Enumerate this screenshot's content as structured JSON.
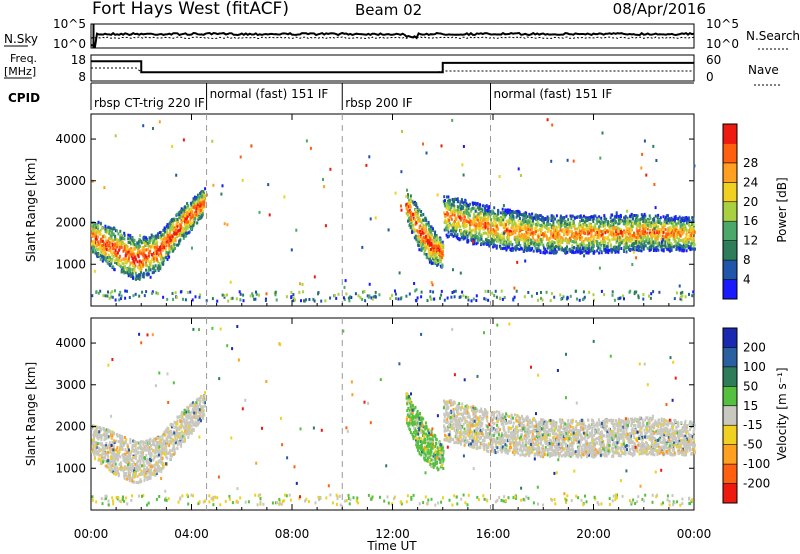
{
  "header": {
    "radar": "Fort Hays West (fitACF)",
    "beam": "Beam 02",
    "date": "08/Apr/2016"
  },
  "chart_data": {
    "type": "heatmap",
    "x_axis": {
      "label": "Time UT",
      "range": [
        "00:00",
        "24:00"
      ],
      "ticks": [
        "00:00",
        "04:00",
        "08:00",
        "12:00",
        "16:00",
        "20:00",
        "00:00"
      ],
      "tick_hours": [
        0,
        4,
        8,
        12,
        16,
        20,
        24
      ]
    },
    "top_panels": {
      "nsky": {
        "label": "N.Sky",
        "ticks": [
          "10^5",
          "10^0"
        ],
        "right_label": "N.Search",
        "right_ticks": [
          "10^5",
          "10^0"
        ]
      },
      "freq": {
        "label1": "Freq.",
        "label2": "[MHz]",
        "ticks": [
          "18",
          "8"
        ],
        "right_label": "Nave",
        "right_ticks": [
          "60",
          "0"
        ],
        "freq_steps": [
          {
            "start": 0,
            "end": 2,
            "mhz": 16.5
          },
          {
            "start": 2,
            "end": 14,
            "mhz": 11.5
          },
          {
            "start": 14,
            "end": 24,
            "mhz": 15.8
          }
        ]
      },
      "cpid": {
        "label": "CPID",
        "segments": [
          {
            "name": "rbsp CT-trig 220 IF",
            "start": 0,
            "end": 4.6
          },
          {
            "name": "normal (fast) 151 IF",
            "start": 4.6,
            "end": 10
          },
          {
            "name": "rbsp 200 IF",
            "start": 10,
            "end": 15.9
          },
          {
            "name": "normal (fast) 151 IF",
            "start": 15.9,
            "end": 24
          }
        ]
      }
    },
    "panels": [
      {
        "name": "power",
        "ylabel": "Slant Range [km]",
        "yticks": [
          1000,
          2000,
          3000,
          4000
        ],
        "yrange": [
          0,
          4600
        ],
        "colorbar": {
          "label": "Power [dB]",
          "ticks": [
            "4",
            "8",
            "12",
            "16",
            "20",
            "24",
            "28"
          ],
          "colors": [
            "#1a1aff",
            "#1f55aa",
            "#2e7d5a",
            "#4aa86a",
            "#a8d040",
            "#f0d020",
            "#ffa020",
            "#ff6010",
            "#ee1a10"
          ]
        }
      },
      {
        "name": "velocity",
        "ylabel": "Slant Range [km]",
        "yticks": [
          1000,
          2000,
          3000,
          4000
        ],
        "yrange": [
          0,
          4600
        ],
        "colorbar": {
          "label": "Velocity [m s⁻¹]",
          "ticks": [
            "200",
            "100",
            "50",
            "15",
            "-15",
            "-50",
            "-100",
            "-200"
          ],
          "colors": [
            "#1a2ab0",
            "#2a5fa0",
            "#2e7d5a",
            "#55c040",
            "#c8c8c0",
            "#f0d020",
            "#ffa020",
            "#ff6010",
            "#ee1a10"
          ]
        }
      }
    ],
    "scatter_bands": [
      {
        "name": "morning-arc",
        "t0": 0,
        "t1": 4.5,
        "center": [
          1700,
          1400,
          1150,
          1350,
          2000,
          2550
        ],
        "width": [
          400,
          500,
          500,
          450,
          400,
          300
        ]
      },
      {
        "name": "midday-ribbon",
        "t0": 12.5,
        "t1": 14,
        "center": [
          2500,
          1900,
          1500,
          1250
        ],
        "width": [
          350,
          500,
          450,
          300
        ]
      },
      {
        "name": "afternoon-band",
        "t0": 14,
        "t1": 24,
        "center": [
          2200,
          1900,
          1750,
          1750,
          1800,
          1750
        ],
        "width": [
          500,
          500,
          450,
          450,
          450,
          400
        ]
      }
    ]
  }
}
